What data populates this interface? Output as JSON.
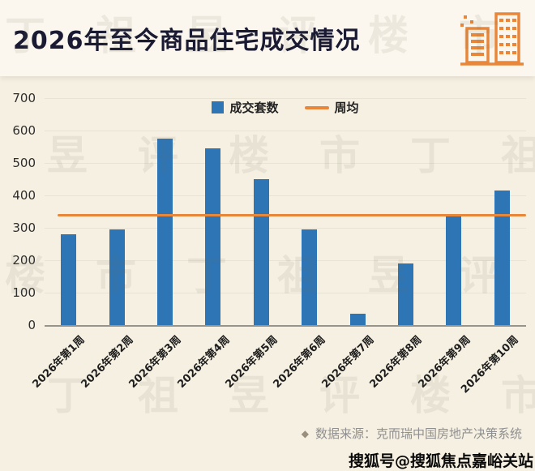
{
  "header": {
    "title": "2026年至今商品住宅成交情况"
  },
  "icons": {
    "diamond": "◆",
    "buildings": "buildings-icon"
  },
  "watermark": {
    "text": "丁祖昱评楼市"
  },
  "footer": {
    "source": "数据来源：克而瑞中国房地产决策系统",
    "account": "搜狐号@搜狐焦点嘉峪关站"
  },
  "colors": {
    "background": "#F6F0E2",
    "header_bg": "#FBF7EE",
    "title": "#1A1A32",
    "bar": "#2E75B6",
    "line": "#E8873A",
    "icon_orange": "#E8873A",
    "source_text": "#8F8F8F"
  },
  "chart_data": {
    "type": "bar",
    "title": "2026年至今商品住宅成交情况",
    "categories": [
      "2026年第1周",
      "2026年第2周",
      "2026年第3周",
      "2026年第4周",
      "2026年第5周",
      "2026年第6周",
      "2026年第7周",
      "2026年第8周",
      "2026年第9周",
      "2026年第10周"
    ],
    "series": [
      {
        "name": "成交套数",
        "values": [
          280,
          295,
          575,
          545,
          450,
          295,
          35,
          190,
          340,
          415
        ]
      }
    ],
    "average_line": {
      "name": "周均",
      "value": 342
    },
    "ylim": [
      0,
      700
    ],
    "yticks": [
      0,
      100,
      200,
      300,
      400,
      500,
      600,
      700
    ],
    "legend": [
      "成交套数",
      "周均"
    ],
    "legend_position": "top",
    "grid": false,
    "xlabel": "",
    "ylabel": ""
  }
}
